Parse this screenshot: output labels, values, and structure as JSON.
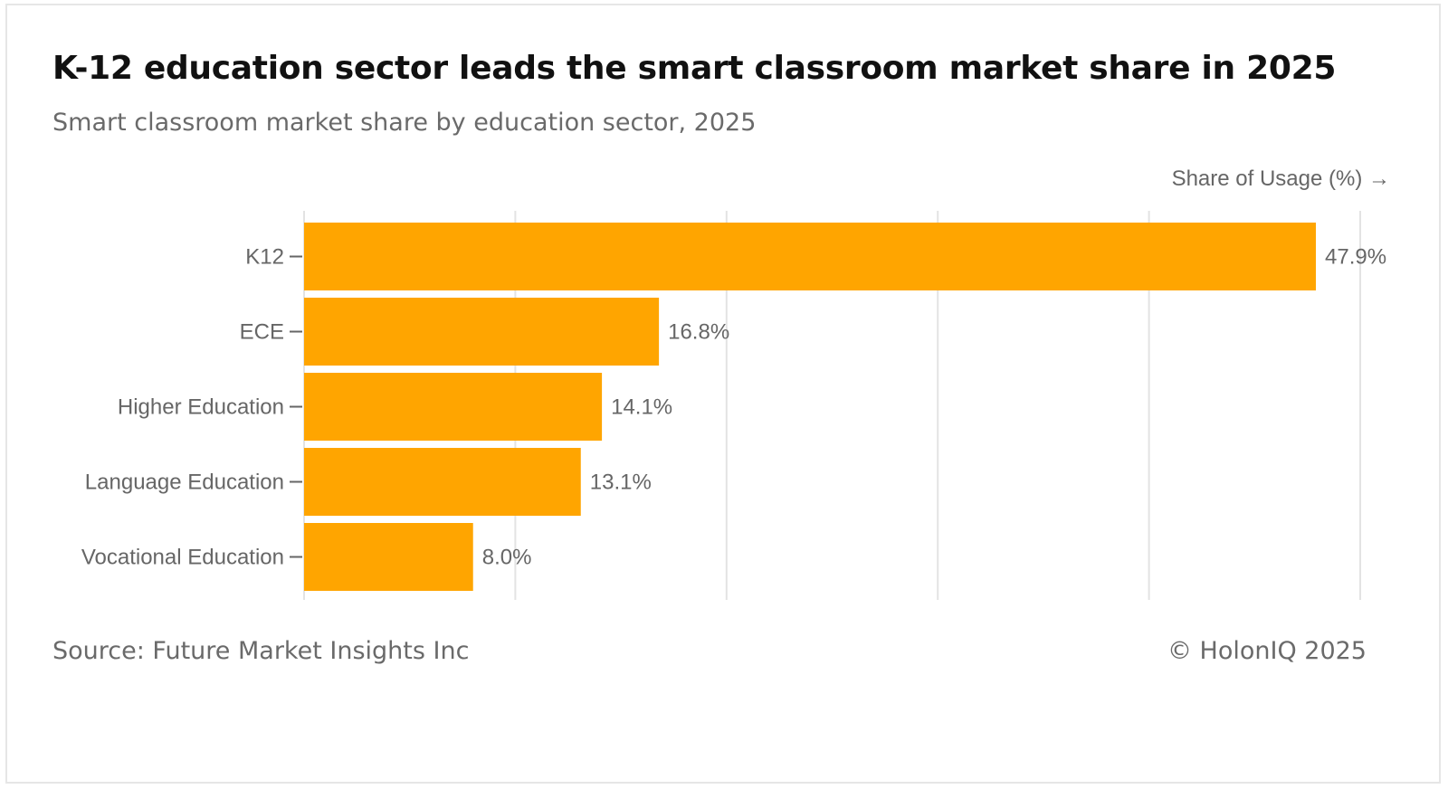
{
  "title": "K-12 education sector leads the smart classroom market share in 2025",
  "subtitle": "Smart classroom market share by education sector, 2025",
  "axis_title": "Share of Usage (%) →",
  "source": "Source: Future Market Insights Inc",
  "credit": "© HolonIQ 2025",
  "colors": {
    "bar": "#FFA500",
    "grid": "#e3e3e3",
    "text": "#666666"
  },
  "chart_data": {
    "type": "bar",
    "orientation": "horizontal",
    "categories": [
      "K12",
      "ECE",
      "Higher Education",
      "Language Education",
      "Vocational Education"
    ],
    "values": [
      47.9,
      16.8,
      14.1,
      13.1,
      8.0
    ],
    "value_labels": [
      "47.9%",
      "16.8%",
      "14.1%",
      "13.1%",
      "8.0%"
    ],
    "xlabel": "Share of Usage (%) →",
    "ylabel": "",
    "xlim": [
      0,
      50
    ],
    "grid": true
  }
}
